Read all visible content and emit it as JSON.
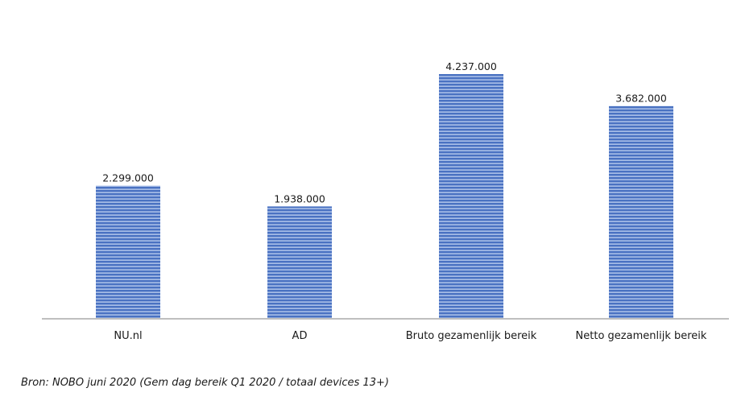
{
  "chart_data": {
    "type": "bar",
    "categories": [
      "NU.nl",
      "AD",
      "Bruto gezamenlijk bereik",
      "Netto gezamenlijk bereik"
    ],
    "values": [
      2299000,
      1938000,
      4237000,
      3682000
    ],
    "value_labels": [
      "2.299.000",
      "1.938.000",
      "4.237.000",
      "3.682.000"
    ],
    "title": "",
    "xlabel": "",
    "ylabel": "",
    "ylim": [
      0,
      4237000
    ],
    "grid": false,
    "legend": "none",
    "bar_color": "#4a72c2",
    "bar_stripe_color": "#a9bfe8",
    "axis_color": "#bfbfbf"
  },
  "footer": {
    "source": "Bron: NOBO juni 2020 (Gem dag bereik Q1 2020 / totaal devices 13+)"
  }
}
